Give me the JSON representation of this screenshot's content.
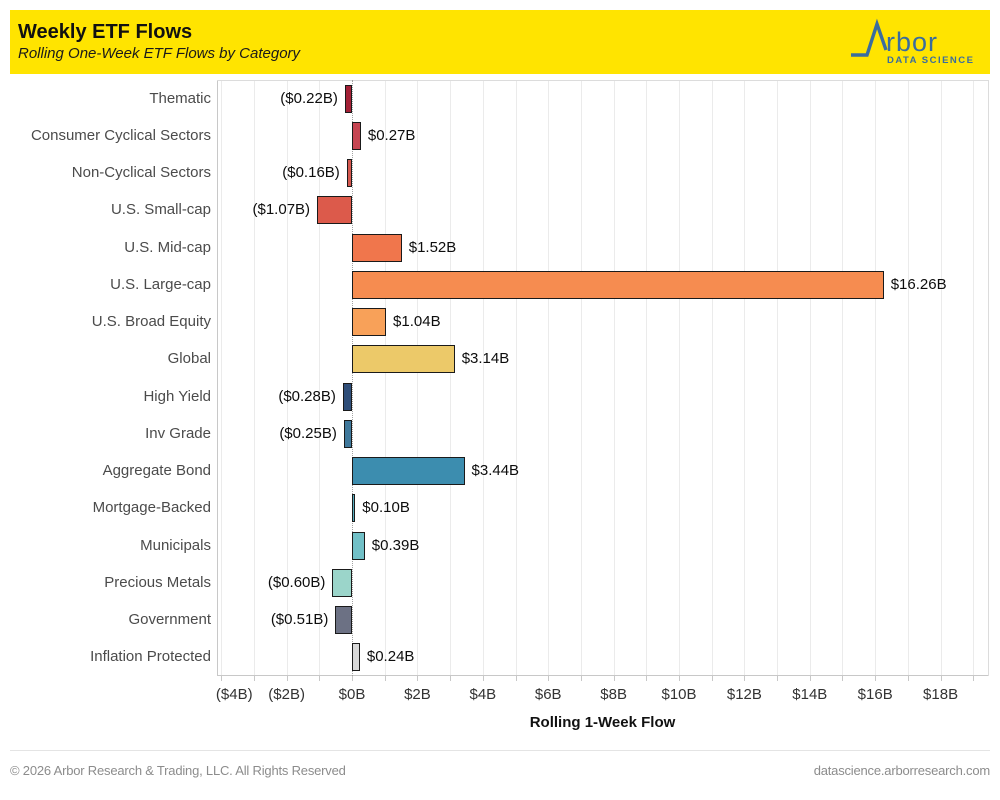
{
  "header": {
    "title": "Weekly ETF Flows",
    "subtitle": "Rolling One-Week ETF Flows by Category",
    "background_color": "#FFE400",
    "logo": {
      "brand": "rbor",
      "tagline": "DATA SCIENCE",
      "color": "#3A6D9E",
      "icon": "arbor-peak-icon"
    }
  },
  "chart_data": {
    "type": "bar",
    "orientation": "horizontal",
    "title": "Weekly ETF Flows",
    "subtitle": "Rolling One-Week ETF Flows by Category",
    "xlabel": "Rolling 1-Week Flow",
    "ylabel": "",
    "xlim": [
      -4.13,
      19.45
    ],
    "grid": true,
    "minor_grid_step": 1,
    "zero_line_style": "dotted",
    "categories": [
      "Thematic",
      "Consumer Cyclical Sectors",
      "Non-Cyclical Sectors",
      "U.S. Small-cap",
      "U.S. Mid-cap",
      "U.S. Large-cap",
      "U.S. Broad Equity",
      "Global",
      "High Yield",
      "Inv Grade",
      "Aggregate Bond",
      "Mortgage-Backed",
      "Municipals",
      "Precious Metals",
      "Government",
      "Inflation Protected"
    ],
    "values": [
      -0.22,
      0.27,
      -0.16,
      -1.07,
      1.52,
      16.26,
      1.04,
      3.14,
      -0.28,
      -0.25,
      3.44,
      0.1,
      0.39,
      -0.6,
      -0.51,
      0.24
    ],
    "value_labels": [
      "($0.22B)",
      "$0.27B",
      "($0.16B)",
      "($1.07B)",
      "$1.52B",
      "$16.26B",
      "$1.04B",
      "$3.14B",
      "($0.28B)",
      "($0.25B)",
      "$3.44B",
      "$0.10B",
      "$0.39B",
      "($0.60B)",
      "($0.51B)",
      "$0.24B"
    ],
    "bar_colors": [
      "#A32036",
      "#C64552",
      "#D4574E",
      "#DC5A4B",
      "#F0764C",
      "#F68C50",
      "#F8A159",
      "#ECC969",
      "#2F4E79",
      "#3F789B",
      "#3C8DAF",
      "#55ACBD",
      "#71C0C7",
      "#9BD5CA",
      "#6C7184",
      "#D8D8D8"
    ],
    "tick_values": [
      -4,
      -2,
      0,
      2,
      4,
      6,
      8,
      10,
      12,
      14,
      16,
      18
    ],
    "tick_labels": [
      "($4B)",
      "($2B)",
      "$0B",
      "$2B",
      "$4B",
      "$6B",
      "$8B",
      "$10B",
      "$12B",
      "$14B",
      "$16B",
      "$18B"
    ]
  },
  "footer": {
    "left": "© 2026 Arbor Research & Trading, LLC. All Rights Reserved",
    "right": "datascience.arborresearch.com"
  }
}
